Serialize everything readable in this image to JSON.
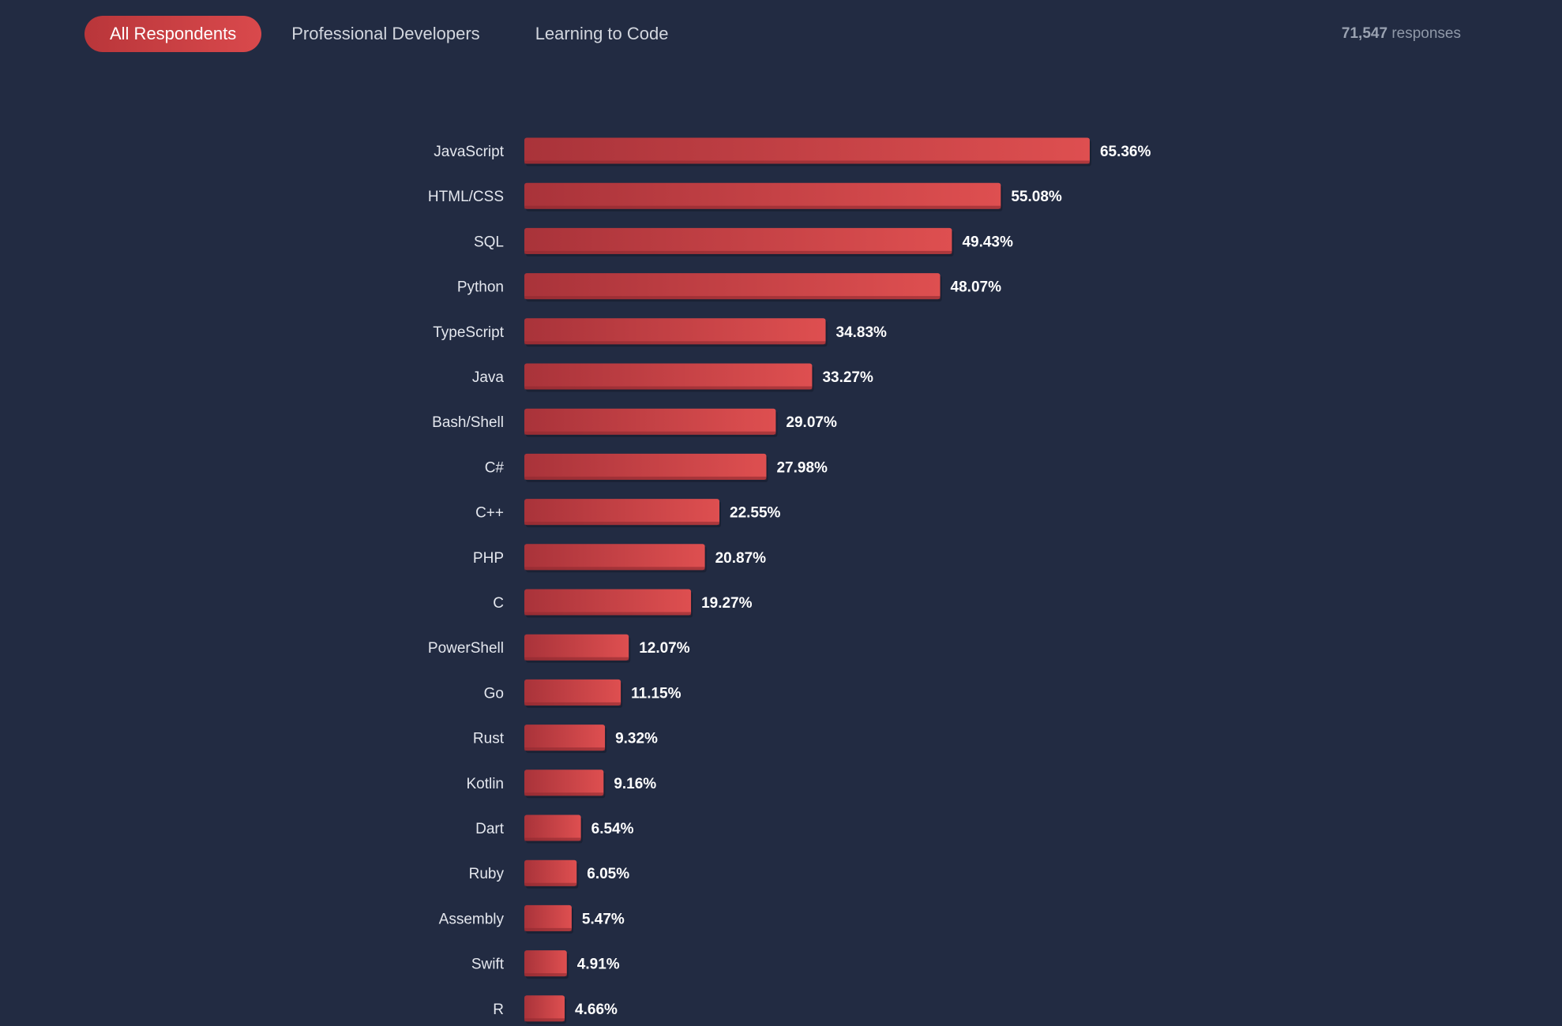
{
  "tabs": [
    {
      "label": "All Respondents",
      "active": true
    },
    {
      "label": "Professional Developers",
      "active": false
    },
    {
      "label": "Learning to Code",
      "active": false
    }
  ],
  "responses": {
    "count": "71,547",
    "label": "responses"
  },
  "colors": {
    "background": "#222b42",
    "bar_start": "#a9333a",
    "bar_end": "#de4f50",
    "accent": "#d9494c"
  },
  "chart_data": {
    "type": "bar",
    "orientation": "horizontal",
    "value_suffix": "%",
    "categories": [
      "JavaScript",
      "HTML/CSS",
      "SQL",
      "Python",
      "TypeScript",
      "Java",
      "Bash/Shell",
      "C#",
      "C++",
      "PHP",
      "C",
      "PowerShell",
      "Go",
      "Rust",
      "Kotlin",
      "Dart",
      "Ruby",
      "Assembly",
      "Swift",
      "R"
    ],
    "values": [
      65.36,
      55.08,
      49.43,
      48.07,
      34.83,
      33.27,
      29.07,
      27.98,
      22.55,
      20.87,
      19.27,
      12.07,
      11.15,
      9.32,
      9.16,
      6.54,
      6.05,
      5.47,
      4.91,
      4.66
    ],
    "value_labels": [
      "65.36%",
      "55.08%",
      "49.43%",
      "48.07%",
      "34.83%",
      "33.27%",
      "29.07%",
      "27.98%",
      "22.55%",
      "20.87%",
      "19.27%",
      "12.07%",
      "11.15%",
      "9.32%",
      "9.16%",
      "6.54%",
      "6.05%",
      "5.47%",
      "4.91%",
      "4.66%"
    ],
    "grid": false,
    "legend": "none"
  }
}
